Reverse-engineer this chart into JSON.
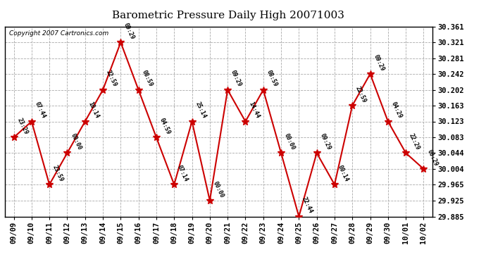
{
  "title": "Barometric Pressure Daily High 20071003",
  "copyright": "Copyright 2007 Cartronics.com",
  "x_labels": [
    "09/09",
    "09/10",
    "09/11",
    "09/12",
    "09/13",
    "09/14",
    "09/15",
    "09/16",
    "09/17",
    "09/18",
    "09/19",
    "09/20",
    "09/21",
    "09/22",
    "09/23",
    "09/24",
    "09/25",
    "09/26",
    "09/27",
    "09/28",
    "09/29",
    "09/30",
    "10/01",
    "10/02"
  ],
  "y_values": [
    30.083,
    30.123,
    29.965,
    30.044,
    30.123,
    30.202,
    30.321,
    30.202,
    30.083,
    29.965,
    30.123,
    29.925,
    30.202,
    30.123,
    30.202,
    30.044,
    29.885,
    30.044,
    29.965,
    30.163,
    30.242,
    30.123,
    30.044,
    30.004
  ],
  "point_labels": [
    "23:29",
    "07:44",
    "23:59",
    "00:00",
    "10:14",
    "22:59",
    "09:29",
    "08:59",
    "04:59",
    "07:14",
    "25:14",
    "00:00",
    "09:29",
    "14:44",
    "08:59",
    "00:00",
    "22:44",
    "09:29",
    "00:14",
    "22:59",
    "09:29",
    "04:29",
    "22:29",
    "00:29"
  ],
  "y_ticks": [
    29.885,
    29.925,
    29.965,
    30.004,
    30.044,
    30.083,
    30.123,
    30.163,
    30.202,
    30.242,
    30.281,
    30.321,
    30.361
  ],
  "y_min": 29.885,
  "y_max": 30.361,
  "line_color": "#cc0000",
  "marker_color": "#cc0000",
  "bg_color": "#ffffff",
  "grid_color": "#aaaaaa",
  "title_fontsize": 11,
  "tick_fontsize": 7.5
}
